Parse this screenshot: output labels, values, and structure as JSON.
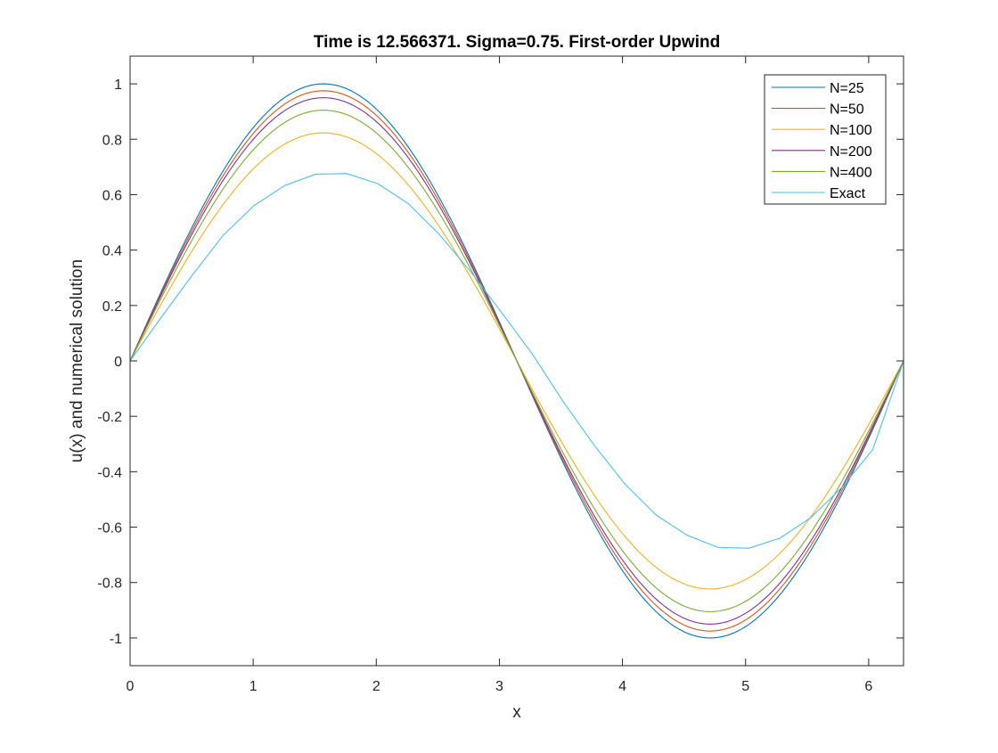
{
  "chart_data": {
    "type": "line",
    "title": "Time is 12.566371. Sigma=0.75. First-order Upwind",
    "xlabel": "x",
    "ylabel": "u(x) and numerical solution",
    "xlim": [
      0,
      6.2832
    ],
    "ylim": [
      -1.1,
      1.1
    ],
    "xticks": [
      0,
      1,
      2,
      3,
      4,
      5,
      6
    ],
    "xtick_labels": [
      "0",
      "1",
      "2",
      "3",
      "4",
      "5",
      "6"
    ],
    "yticks": [
      -1,
      -0.8,
      -0.6,
      -0.4,
      -0.2,
      0,
      0.2,
      0.4,
      0.6,
      0.8,
      1
    ],
    "ytick_labels": [
      "-1",
      "-0.8",
      "-0.6",
      "-0.4",
      "-0.2",
      "0",
      "0.2",
      "0.4",
      "0.6",
      "0.8",
      "1"
    ],
    "grid": false,
    "legend_position": "top-right",
    "series": [
      {
        "name": "N=25",
        "color": "#0072BD",
        "x": [
          0,
          1.5708,
          3.1416,
          4.7124,
          6.2832
        ],
        "y": [
          0,
          1,
          0,
          -1,
          0
        ]
      },
      {
        "name": "N=50",
        "color": "#D95319",
        "x": [
          0,
          1.5708,
          3.1416,
          4.7124,
          6.2832
        ],
        "y": [
          0,
          0.975,
          0,
          -0.975,
          0
        ]
      },
      {
        "name": "N=100",
        "color": "#EDB120",
        "x": [
          0,
          1.5708,
          3.1416,
          4.7124,
          6.2832
        ],
        "y": [
          0,
          0.823,
          0,
          -0.823,
          0
        ]
      },
      {
        "name": "N=200",
        "color": "#7E2F8E",
        "x": [
          0,
          1.5708,
          3.1416,
          4.7124,
          6.2832
        ],
        "y": [
          0,
          0.95,
          0,
          -0.95,
          0
        ]
      },
      {
        "name": "N=400",
        "color": "#77AC30",
        "x": [
          0,
          1.5708,
          3.1416,
          4.7124,
          6.2832
        ],
        "y": [
          0,
          0.905,
          0,
          -0.905,
          0
        ]
      },
      {
        "name": "Exact",
        "color": "#4DBEEE",
        "x": [
          0,
          0.2513,
          0.5027,
          0.754,
          1.0053,
          1.2566,
          1.508,
          1.7593,
          2.0106,
          2.2619,
          2.5133,
          2.7646,
          3.0159,
          3.2673,
          3.5186,
          3.7699,
          4.0212,
          4.2726,
          4.5239,
          4.7752,
          5.0265,
          5.2779,
          5.5292,
          5.7805,
          6.0319,
          6.2832
        ],
        "y": [
          0,
          0.156,
          0.308,
          0.452,
          0.56,
          0.633,
          0.674,
          0.676,
          0.64,
          0.567,
          0.456,
          0.323,
          0.176,
          0.025,
          -0.147,
          -0.304,
          -0.445,
          -0.556,
          -0.629,
          -0.673,
          -0.676,
          -0.64,
          -0.566,
          -0.457,
          -0.321,
          -0.002
        ]
      }
    ]
  }
}
